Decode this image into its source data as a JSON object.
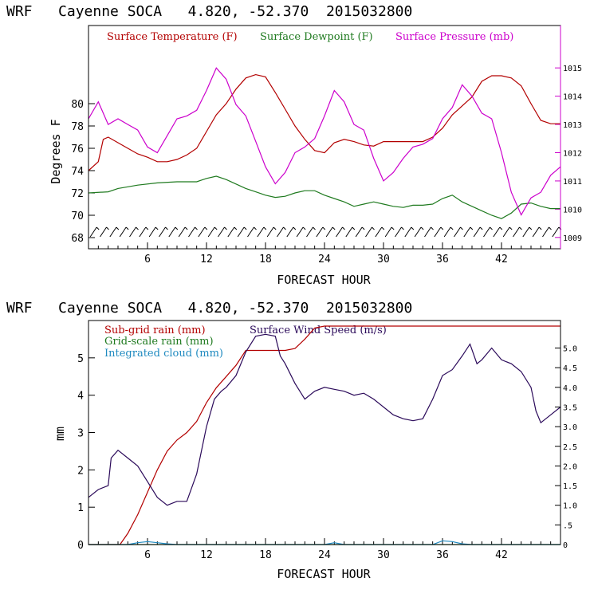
{
  "chart_data": [
    {
      "type": "line",
      "title": "WRF   Cayenne SOCA   4.820, -52.370  2015032800",
      "xlabel": "FORECAST HOUR",
      "ylabel": "Degrees F",
      "xlim": [
        0,
        48
      ],
      "ylim": [
        67,
        87
      ],
      "y2lim": [
        1008.6,
        1016.5
      ],
      "xticks": [
        "6",
        "12",
        "18",
        "24",
        "30",
        "36",
        "42"
      ],
      "yticks": [
        "68",
        "70",
        "72",
        "74",
        "76",
        "78",
        "80"
      ],
      "y2ticks": [
        "1009",
        "1010",
        "1011",
        "1012",
        "1013",
        "1014",
        "1015"
      ],
      "wind_barbs_row_y": 68.5,
      "series": [
        {
          "name": "Surface Temperature (F)",
          "color": "#b30000",
          "axis": "left",
          "points": [
            [
              0,
              74.0
            ],
            [
              1,
              74.8
            ],
            [
              1.5,
              76.8
            ],
            [
              2,
              77.0
            ],
            [
              3,
              76.5
            ],
            [
              4,
              76.0
            ],
            [
              5,
              75.5
            ],
            [
              6,
              75.2
            ],
            [
              7,
              74.8
            ],
            [
              8,
              74.8
            ],
            [
              9,
              75.0
            ],
            [
              10,
              75.4
            ],
            [
              11,
              76.0
            ],
            [
              12,
              77.5
            ],
            [
              13,
              79.0
            ],
            [
              14,
              80.0
            ],
            [
              15,
              81.3
            ],
            [
              16,
              82.3
            ],
            [
              17,
              82.6
            ],
            [
              18,
              82.4
            ],
            [
              19,
              81.0
            ],
            [
              20,
              79.5
            ],
            [
              21,
              78.0
            ],
            [
              22,
              76.8
            ],
            [
              23,
              75.8
            ],
            [
              24,
              75.6
            ],
            [
              25,
              76.5
            ],
            [
              26,
              76.8
            ],
            [
              27,
              76.6
            ],
            [
              28,
              76.3
            ],
            [
              29,
              76.2
            ],
            [
              30,
              76.6
            ],
            [
              31,
              76.6
            ],
            [
              32,
              76.6
            ],
            [
              33,
              76.6
            ],
            [
              34,
              76.6
            ],
            [
              35,
              77.0
            ],
            [
              36,
              77.8
            ],
            [
              37,
              79.0
            ],
            [
              38,
              79.8
            ],
            [
              39,
              80.6
            ],
            [
              40,
              82.0
            ],
            [
              41,
              82.5
            ],
            [
              42,
              82.5
            ],
            [
              43,
              82.3
            ],
            [
              44,
              81.6
            ],
            [
              45,
              80.0
            ],
            [
              46,
              78.5
            ],
            [
              47,
              78.2
            ],
            [
              48,
              78.2
            ]
          ]
        },
        {
          "name": "Surface Dewpoint (F)",
          "color": "#1f7a1f",
          "axis": "left",
          "points": [
            [
              0,
              72.0
            ],
            [
              2,
              72.1
            ],
            [
              3,
              72.4
            ],
            [
              5,
              72.7
            ],
            [
              7,
              72.9
            ],
            [
              9,
              73.0
            ],
            [
              11,
              73.0
            ],
            [
              12,
              73.3
            ],
            [
              13,
              73.5
            ],
            [
              14,
              73.2
            ],
            [
              15,
              72.8
            ],
            [
              16,
              72.4
            ],
            [
              17,
              72.1
            ],
            [
              18,
              71.8
            ],
            [
              19,
              71.6
            ],
            [
              20,
              71.7
            ],
            [
              21,
              72.0
            ],
            [
              22,
              72.2
            ],
            [
              23,
              72.2
            ],
            [
              24,
              71.8
            ],
            [
              25,
              71.5
            ],
            [
              26,
              71.2
            ],
            [
              27,
              70.8
            ],
            [
              28,
              71.0
            ],
            [
              29,
              71.2
            ],
            [
              30,
              71.0
            ],
            [
              31,
              70.8
            ],
            [
              32,
              70.7
            ],
            [
              33,
              70.9
            ],
            [
              34,
              70.9
            ],
            [
              35,
              71.0
            ],
            [
              36,
              71.5
            ],
            [
              37,
              71.8
            ],
            [
              38,
              71.2
            ],
            [
              39,
              70.8
            ],
            [
              40,
              70.4
            ],
            [
              41,
              70.0
            ],
            [
              42,
              69.7
            ],
            [
              43,
              70.2
            ],
            [
              44,
              71.0
            ],
            [
              45,
              71.1
            ],
            [
              46,
              70.8
            ],
            [
              47,
              70.6
            ],
            [
              48,
              70.6
            ]
          ]
        },
        {
          "name": "Surface Pressure (mb)",
          "color": "#cc00cc",
          "axis": "right",
          "points": [
            [
              0,
              1013.2
            ],
            [
              1,
              1013.8
            ],
            [
              2,
              1013.0
            ],
            [
              3,
              1013.2
            ],
            [
              4,
              1013.0
            ],
            [
              5,
              1012.8
            ],
            [
              6,
              1012.2
            ],
            [
              7,
              1012.0
            ],
            [
              8,
              1012.6
            ],
            [
              9,
              1013.2
            ],
            [
              10,
              1013.3
            ],
            [
              11,
              1013.5
            ],
            [
              12,
              1014.2
            ],
            [
              13,
              1015.0
            ],
            [
              14,
              1014.6
            ],
            [
              15,
              1013.7
            ],
            [
              16,
              1013.3
            ],
            [
              17,
              1012.4
            ],
            [
              18,
              1011.5
            ],
            [
              19,
              1010.9
            ],
            [
              20,
              1011.3
            ],
            [
              21,
              1012.0
            ],
            [
              22,
              1012.2
            ],
            [
              23,
              1012.5
            ],
            [
              24,
              1013.3
            ],
            [
              25,
              1014.2
            ],
            [
              26,
              1013.8
            ],
            [
              27,
              1013.0
            ],
            [
              28,
              1012.8
            ],
            [
              29,
              1011.8
            ],
            [
              30,
              1011.0
            ],
            [
              31,
              1011.3
            ],
            [
              32,
              1011.8
            ],
            [
              33,
              1012.2
            ],
            [
              34,
              1012.3
            ],
            [
              35,
              1012.5
            ],
            [
              36,
              1013.2
            ],
            [
              37,
              1013.6
            ],
            [
              38,
              1014.4
            ],
            [
              39,
              1014.0
            ],
            [
              40,
              1013.4
            ],
            [
              41,
              1013.2
            ],
            [
              42,
              1012.0
            ],
            [
              43,
              1010.6
            ],
            [
              44,
              1009.8
            ],
            [
              45,
              1010.4
            ],
            [
              46,
              1010.6
            ],
            [
              47,
              1011.2
            ],
            [
              48,
              1011.5
            ]
          ]
        }
      ]
    },
    {
      "type": "line",
      "title": "WRF   Cayenne SOCA   4.820, -52.370  2015032800",
      "xlabel": "FORECAST HOUR",
      "ylabel": "mm",
      "xlim": [
        0,
        48
      ],
      "ylim": [
        0,
        6.0
      ],
      "y2lim": [
        0,
        5.7
      ],
      "xticks": [
        "6",
        "12",
        "18",
        "24",
        "30",
        "36",
        "42"
      ],
      "yticks": [
        "0",
        "1",
        "2",
        "3",
        "4",
        "5"
      ],
      "y2ticks": [
        "0",
        ".5",
        "1.0",
        "1.5",
        "2.0",
        "2.5",
        "3.0",
        "3.5",
        "4.0",
        "4.5",
        "5.0"
      ],
      "series": [
        {
          "name": "Sub-grid rain (mm)",
          "color": "#b30000",
          "axis": "left",
          "points": [
            [
              0,
              0
            ],
            [
              3.2,
              0
            ],
            [
              4,
              0.3
            ],
            [
              5,
              0.8
            ],
            [
              6,
              1.4
            ],
            [
              7,
              2.0
            ],
            [
              8,
              2.5
            ],
            [
              9,
              2.8
            ],
            [
              10,
              3.0
            ],
            [
              11,
              3.3
            ],
            [
              12,
              3.8
            ],
            [
              13,
              4.2
            ],
            [
              14,
              4.5
            ],
            [
              15,
              4.8
            ],
            [
              16,
              5.2
            ],
            [
              18,
              5.2
            ],
            [
              20,
              5.2
            ],
            [
              21,
              5.25
            ],
            [
              22,
              5.5
            ],
            [
              23,
              5.8
            ],
            [
              24,
              5.85
            ],
            [
              30,
              5.85
            ],
            [
              36,
              5.85
            ],
            [
              42,
              5.85
            ],
            [
              48,
              5.85
            ]
          ]
        },
        {
          "name": "Grid-scale rain (mm)",
          "color": "#1f7a1f",
          "axis": "left",
          "points": [
            [
              0,
              0
            ],
            [
              48,
              0
            ]
          ]
        },
        {
          "name": "Integrated cloud (mm)",
          "color": "#1f8ac0",
          "axis": "left",
          "points": [
            [
              0,
              0
            ],
            [
              4,
              0
            ],
            [
              5,
              0.05
            ],
            [
              6,
              0.08
            ],
            [
              7,
              0.05
            ],
            [
              8,
              0.02
            ],
            [
              9,
              0
            ],
            [
              24,
              0
            ],
            [
              25,
              0.05
            ],
            [
              26,
              0
            ],
            [
              35,
              0
            ],
            [
              36,
              0.1
            ],
            [
              37,
              0.08
            ],
            [
              38,
              0.02
            ],
            [
              39,
              0
            ],
            [
              48,
              0
            ]
          ]
        },
        {
          "name": "Surface Wind Speed (m/s)",
          "color": "#2b0a5a",
          "axis": "right",
          "points": [
            [
              0,
              1.2
            ],
            [
              1,
              1.4
            ],
            [
              2,
              1.5
            ],
            [
              2.3,
              2.2
            ],
            [
              3,
              2.4
            ],
            [
              4,
              2.2
            ],
            [
              5,
              2.0
            ],
            [
              6,
              1.6
            ],
            [
              7,
              1.2
            ],
            [
              8,
              1.0
            ],
            [
              9,
              1.1
            ],
            [
              10,
              1.1
            ],
            [
              11,
              1.8
            ],
            [
              12,
              3.0
            ],
            [
              12.8,
              3.7
            ],
            [
              13.5,
              3.9
            ],
            [
              14,
              4.0
            ],
            [
              15,
              4.3
            ],
            [
              16,
              4.9
            ],
            [
              17,
              5.3
            ],
            [
              18,
              5.35
            ],
            [
              19,
              5.3
            ],
            [
              19.5,
              4.8
            ],
            [
              20,
              4.6
            ],
            [
              21,
              4.1
            ],
            [
              22,
              3.7
            ],
            [
              23,
              3.9
            ],
            [
              24,
              4.0
            ],
            [
              25,
              3.95
            ],
            [
              26,
              3.9
            ],
            [
              27,
              3.8
            ],
            [
              28,
              3.85
            ],
            [
              29,
              3.7
            ],
            [
              30,
              3.5
            ],
            [
              31,
              3.3
            ],
            [
              32,
              3.2
            ],
            [
              33,
              3.15
            ],
            [
              34,
              3.2
            ],
            [
              35,
              3.7
            ],
            [
              36,
              4.3
            ],
            [
              37,
              4.45
            ],
            [
              38,
              4.8
            ],
            [
              38.8,
              5.1
            ],
            [
              39.5,
              4.6
            ],
            [
              40,
              4.7
            ],
            [
              41,
              5.0
            ],
            [
              42,
              4.7
            ],
            [
              43,
              4.6
            ],
            [
              44,
              4.4
            ],
            [
              45,
              4.0
            ],
            [
              45.5,
              3.4
            ],
            [
              46,
              3.1
            ],
            [
              47,
              3.3
            ],
            [
              48,
              3.5
            ]
          ]
        }
      ]
    }
  ]
}
